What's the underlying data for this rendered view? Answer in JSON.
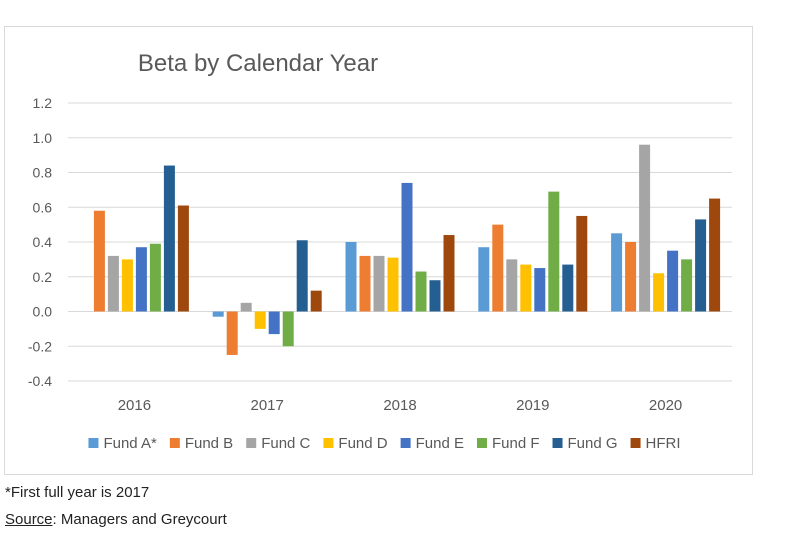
{
  "chart_data": {
    "type": "bar",
    "title": "Beta by Calendar Year",
    "xlabel": "",
    "ylabel": "",
    "ylim": [
      -0.4,
      1.2
    ],
    "yticks": [
      "1.2",
      "1.0",
      "0.8",
      "0.6",
      "0.4",
      "0.2",
      "0.0",
      "-0.2",
      "-0.4"
    ],
    "ytick_values": [
      1.2,
      1.0,
      0.8,
      0.6,
      0.4,
      0.2,
      0.0,
      -0.2,
      -0.4
    ],
    "categories": [
      "2016",
      "2017",
      "2018",
      "2019",
      "2020"
    ],
    "grid": true,
    "legend_position": "bottom",
    "series": [
      {
        "name": "Fund A*",
        "color": "#5B9BD5",
        "values": [
          null,
          -0.03,
          0.4,
          0.37,
          0.45
        ]
      },
      {
        "name": "Fund B",
        "color": "#ED7D31",
        "values": [
          0.58,
          -0.25,
          0.32,
          0.5,
          0.4
        ]
      },
      {
        "name": "Fund C",
        "color": "#A5A5A5",
        "values": [
          0.32,
          0.05,
          0.32,
          0.3,
          0.96
        ]
      },
      {
        "name": "Fund D",
        "color": "#FFC000",
        "values": [
          0.3,
          -0.1,
          0.31,
          0.27,
          0.22
        ]
      },
      {
        "name": "Fund E",
        "color": "#4472C4",
        "values": [
          0.37,
          -0.13,
          0.74,
          0.25,
          0.35
        ]
      },
      {
        "name": "Fund F",
        "color": "#70AD47",
        "values": [
          0.39,
          -0.2,
          0.23,
          0.69,
          0.3
        ]
      },
      {
        "name": "Fund G",
        "color": "#255E91",
        "values": [
          0.84,
          0.41,
          0.18,
          0.27,
          0.53
        ]
      },
      {
        "name": "HFRI",
        "color": "#9E480E",
        "values": [
          0.61,
          0.12,
          0.44,
          0.55,
          0.65
        ]
      }
    ]
  },
  "footnotes": {
    "note1": "*First full year is 2017",
    "source_label": "Source",
    "source_text": ": Managers and Greycourt"
  }
}
